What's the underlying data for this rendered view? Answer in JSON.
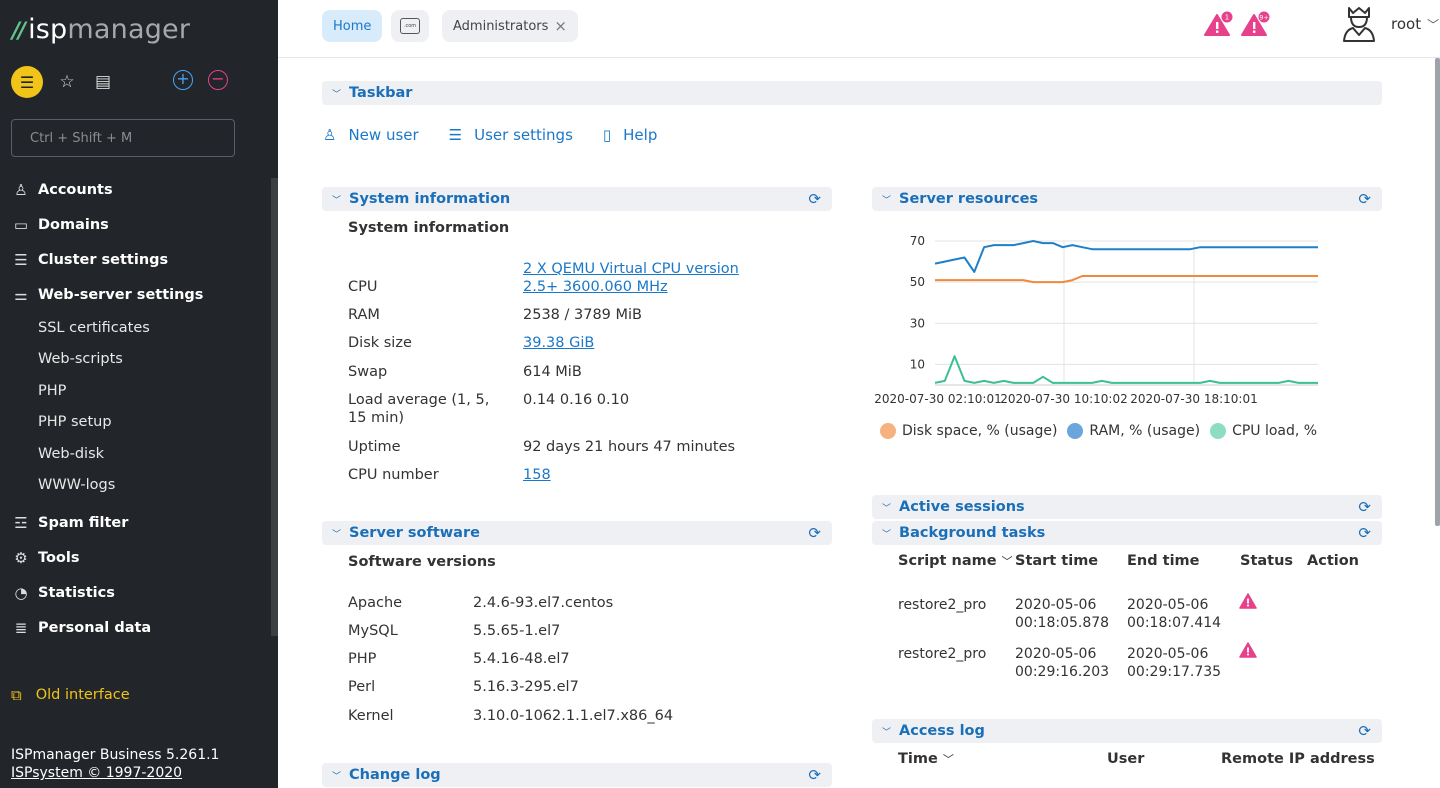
{
  "brand": {
    "part1": "isp",
    "part2": "manager"
  },
  "sidebar": {
    "search_placeholder": "Ctrl + Shift + M",
    "items": [
      {
        "label": "Accounts",
        "icon": "user-icon"
      },
      {
        "label": "Domains",
        "icon": "domain-icon"
      },
      {
        "label": "Cluster settings",
        "icon": "server-icon"
      },
      {
        "label": "Web-server settings",
        "icon": "sliders-icon"
      }
    ],
    "subitems": [
      "SSL certificates",
      "Web-scripts",
      "PHP",
      "PHP setup",
      "Web-disk",
      "WWW-logs"
    ],
    "items2": [
      {
        "label": "Spam filter",
        "icon": "filter-icon"
      },
      {
        "label": "Tools",
        "icon": "gear-icon"
      },
      {
        "label": "Statistics",
        "icon": "pie-chart-icon"
      },
      {
        "label": "Personal data",
        "icon": "list-icon"
      }
    ],
    "old_interface": "Old interface",
    "version": "ISPmanager Business 5.261.1",
    "copyright": "ISPsystem © 1997-2020"
  },
  "topbar": {
    "tabs": {
      "home": "Home",
      "admins": "Administrators"
    },
    "alert_counts": [
      "1",
      "9+"
    ],
    "user": "root"
  },
  "taskbar": {
    "title": "Taskbar",
    "links": [
      "New user",
      "User settings",
      "Help"
    ]
  },
  "sysinfo": {
    "title": "System information",
    "subtitle": "System information",
    "rows": [
      {
        "label": "CPU",
        "value": "2 X QEMU Virtual CPU version 2.5+ 3600.060 MHz"
      },
      {
        "label": "RAM",
        "value": "2538 / 3789 MiB"
      },
      {
        "label": "Disk size",
        "value": "39.38 GiB"
      },
      {
        "label": "Swap",
        "value": "614 MiB"
      },
      {
        "label": "Load average (1, 5, 15 min)",
        "value": "0.14 0.16 0.10"
      },
      {
        "label": "Uptime",
        "value": "92 days 21 hours 47 minutes"
      },
      {
        "label": "CPU number",
        "value": "158"
      }
    ]
  },
  "software": {
    "title": "Server software",
    "subtitle": "Software versions",
    "rows": [
      {
        "name": "Apache",
        "version": "2.4.6-93.el7.centos"
      },
      {
        "name": "MySQL",
        "version": "5.5.65-1.el7"
      },
      {
        "name": "PHP",
        "version": "5.4.16-48.el7"
      },
      {
        "name": "Perl",
        "version": "5.16.3-295.el7"
      },
      {
        "name": "Kernel",
        "version": "3.10.0-1062.1.1.el7.x86_64"
      }
    ]
  },
  "changelog": {
    "title": "Change log"
  },
  "resources": {
    "title": "Server resources"
  },
  "chart_data": {
    "type": "line",
    "x_ticks": [
      "2020-07-30 02:10:01",
      "2020-07-30 10:10:02",
      "2020-07-30 18:10:01"
    ],
    "y_ticks": [
      10,
      30,
      50,
      70
    ],
    "ylim": [
      0,
      70
    ],
    "series": [
      {
        "name": "Disk space, % (usage)",
        "color": "#f5b27f",
        "line_color": "#f08a3a",
        "values": [
          51,
          51,
          51,
          51,
          51,
          51,
          51,
          51,
          51,
          51,
          50,
          50,
          50,
          50,
          51,
          53,
          53,
          53,
          53,
          53,
          53,
          53,
          53,
          53,
          53,
          53,
          53,
          53,
          53,
          53,
          53,
          53,
          53,
          53,
          53,
          53,
          53,
          53,
          53,
          53
        ]
      },
      {
        "name": "RAM, % (usage)",
        "color": "#6aa5dc",
        "line_color": "#1f7fc8",
        "values": [
          59,
          60,
          61,
          62,
          55,
          67,
          68,
          68,
          68,
          69,
          70,
          69,
          69,
          67,
          68,
          67,
          66,
          66,
          66,
          66,
          66,
          66,
          66,
          66,
          66,
          66,
          66,
          67,
          67,
          67,
          67,
          67,
          67,
          67,
          67,
          67,
          67,
          67,
          67,
          67
        ]
      },
      {
        "name": "CPU load, %",
        "color": "#8fdcc4",
        "line_color": "#3bbf93",
        "values": [
          1,
          2,
          14,
          2,
          1,
          2,
          1,
          2,
          1,
          1,
          1,
          4,
          1,
          1,
          1,
          1,
          1,
          2,
          1,
          1,
          1,
          1,
          1,
          1,
          1,
          1,
          1,
          1,
          2,
          1,
          1,
          1,
          1,
          1,
          1,
          1,
          2,
          1,
          1,
          1
        ]
      }
    ]
  },
  "sessions": {
    "title": "Active sessions"
  },
  "tasks": {
    "title": "Background tasks",
    "columns": [
      "Script name",
      "Start time",
      "End time",
      "Status",
      "Action"
    ],
    "rows": [
      {
        "script": "restore2_pro",
        "start1": "2020-05-06",
        "start2": "00:18:05.878",
        "end1": "2020-05-06",
        "end2": "00:18:07.414"
      },
      {
        "script": "restore2_pro",
        "start1": "2020-05-06",
        "start2": "00:29:16.203",
        "end1": "2020-05-06",
        "end2": "00:29:17.735"
      }
    ]
  },
  "accesslog": {
    "title": "Access log",
    "columns": [
      "Time",
      "User",
      "Remote IP address"
    ]
  },
  "colors": {
    "accent": "#1b78c8",
    "sidebar_bg": "#222529",
    "alert": "#e6418a"
  }
}
